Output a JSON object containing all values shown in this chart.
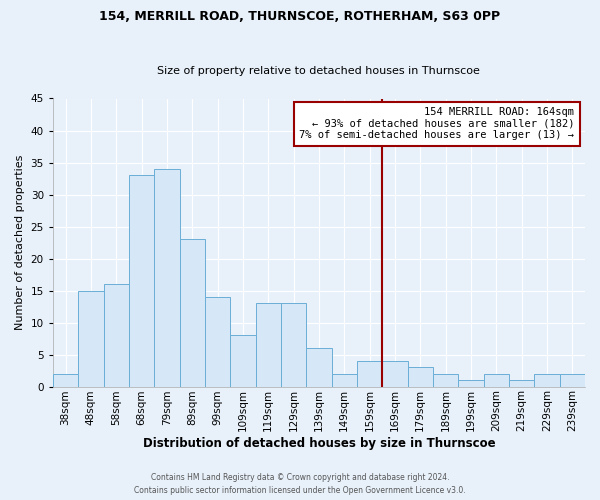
{
  "title1": "154, MERRILL ROAD, THURNSCOE, ROTHERHAM, S63 0PP",
  "title2": "Size of property relative to detached houses in Thurnscoe",
  "xlabel": "Distribution of detached houses by size in Thurnscoe",
  "ylabel": "Number of detached properties",
  "bins": [
    "38sqm",
    "48sqm",
    "58sqm",
    "68sqm",
    "79sqm",
    "89sqm",
    "99sqm",
    "109sqm",
    "119sqm",
    "129sqm",
    "139sqm",
    "149sqm",
    "159sqm",
    "169sqm",
    "179sqm",
    "189sqm",
    "199sqm",
    "209sqm",
    "219sqm",
    "229sqm",
    "239sqm"
  ],
  "counts": [
    2,
    15,
    16,
    33,
    34,
    23,
    14,
    8,
    13,
    13,
    6,
    2,
    4,
    4,
    3,
    2,
    1,
    2,
    1,
    2,
    2
  ],
  "bar_color": "#d6e8f7",
  "bar_edge_color": "#6aaed6",
  "vline_color": "#990000",
  "annotation_text": "154 MERRILL ROAD: 164sqm\n← 93% of detached houses are smaller (182)\n7% of semi-detached houses are larger (13) →",
  "annotation_box_color": "white",
  "annotation_box_edge": "#990000",
  "ylim": [
    0,
    45
  ],
  "yticks": [
    0,
    5,
    10,
    15,
    20,
    25,
    30,
    35,
    40,
    45
  ],
  "footer1": "Contains HM Land Registry data © Crown copyright and database right 2024.",
  "footer2": "Contains public sector information licensed under the Open Government Licence v3.0.",
  "bg_color": "#e8f1fa",
  "plot_bg_color": "#e8f1fa",
  "grid_color": "#ffffff",
  "title1_fontsize": 9.0,
  "title2_fontsize": 8.0,
  "xlabel_fontsize": 8.5,
  "ylabel_fontsize": 8.0,
  "tick_fontsize": 7.5,
  "annot_fontsize": 7.5,
  "footer_fontsize": 5.5
}
